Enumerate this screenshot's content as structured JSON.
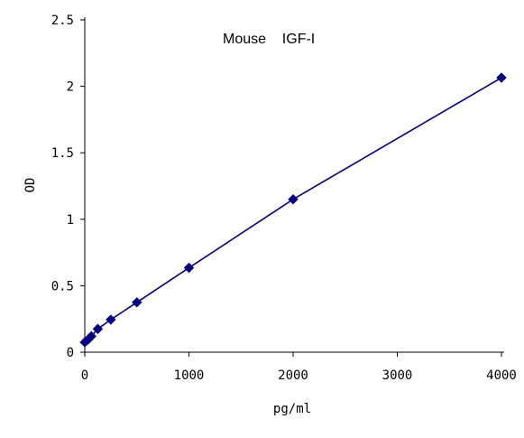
{
  "chart_data": {
    "type": "line",
    "title": "Mouse    IGF-I",
    "xlabel": "pg/ml",
    "ylabel": "OD",
    "xlim": [
      0,
      4000
    ],
    "ylim": [
      0,
      2.5
    ],
    "x_ticks": [
      0,
      1000,
      2000,
      3000,
      4000
    ],
    "y_ticks": [
      0,
      0.5,
      1,
      1.5,
      2,
      2.5
    ],
    "x_tick_labels": [
      "0",
      "1000",
      "2000",
      "3000",
      "4000"
    ],
    "y_tick_labels": [
      "0",
      "0.5",
      "1",
      "1.5",
      "2",
      "2.5"
    ],
    "grid": false,
    "series": [
      {
        "x": [
          0,
          31.25,
          62.5,
          125,
          250,
          500,
          1000,
          2000,
          4000
        ],
        "y": [
          0.075,
          0.095,
          0.12,
          0.175,
          0.245,
          0.375,
          0.635,
          1.15,
          2.065
        ],
        "color": "#000080",
        "marker": "diamond"
      }
    ]
  }
}
